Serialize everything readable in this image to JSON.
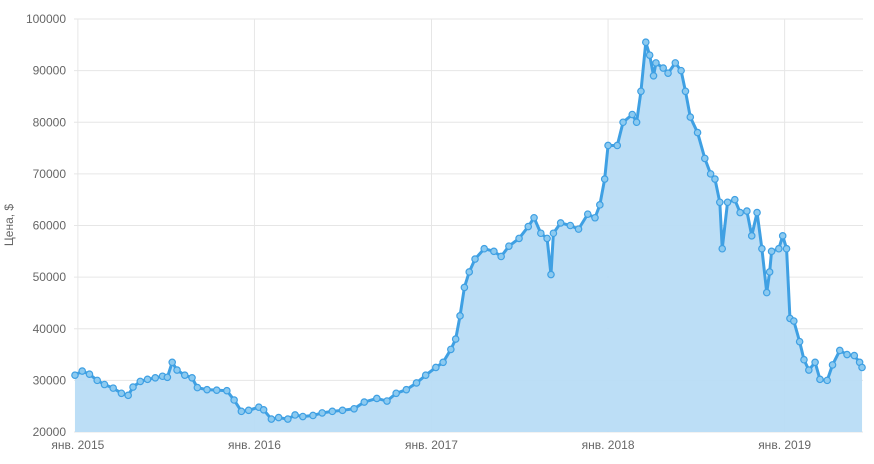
{
  "chart_data": {
    "type": "area",
    "ylabel": "Цена, $",
    "ylim": [
      20000,
      100000
    ],
    "yticks": [
      20000,
      30000,
      40000,
      50000,
      60000,
      70000,
      80000,
      90000,
      100000
    ],
    "xlim": [
      "2014-12-24",
      "2019-06-12"
    ],
    "xticks": [
      {
        "date": "2015-01-01",
        "label": "янв. 2015"
      },
      {
        "date": "2016-01-01",
        "label": "янв. 2016"
      },
      {
        "date": "2017-01-01",
        "label": "янв. 2017"
      },
      {
        "date": "2018-01-01",
        "label": "янв. 2018"
      },
      {
        "date": "2019-01-01",
        "label": "янв. 2019"
      }
    ],
    "grid": true,
    "colors": {
      "line": "#3fa0e3",
      "fill": "#b8dcf5",
      "grid": "#e6e6e6"
    },
    "series": [
      {
        "points": [
          [
            "2014-12-26",
            31000
          ],
          [
            "2015-01-10",
            31800
          ],
          [
            "2015-01-25",
            31200
          ],
          [
            "2015-02-10",
            30000
          ],
          [
            "2015-02-25",
            29200
          ],
          [
            "2015-03-15",
            28500
          ],
          [
            "2015-04-01",
            27500
          ],
          [
            "2015-04-15",
            27100
          ],
          [
            "2015-04-25",
            28700
          ],
          [
            "2015-05-10",
            29800
          ],
          [
            "2015-05-25",
            30200
          ],
          [
            "2015-06-10",
            30500
          ],
          [
            "2015-06-25",
            30800
          ],
          [
            "2015-07-05",
            30600
          ],
          [
            "2015-07-15",
            33500
          ],
          [
            "2015-07-25",
            32000
          ],
          [
            "2015-08-10",
            31000
          ],
          [
            "2015-08-25",
            30500
          ],
          [
            "2015-09-05",
            28600
          ],
          [
            "2015-09-25",
            28200
          ],
          [
            "2015-10-15",
            28100
          ],
          [
            "2015-11-05",
            28000
          ],
          [
            "2015-11-20",
            26200
          ],
          [
            "2015-12-05",
            24000
          ],
          [
            "2015-12-20",
            24200
          ],
          [
            "2016-01-10",
            24800
          ],
          [
            "2016-01-20",
            24300
          ],
          [
            "2016-02-05",
            22500
          ],
          [
            "2016-02-20",
            22800
          ],
          [
            "2016-03-10",
            22500
          ],
          [
            "2016-03-25",
            23300
          ],
          [
            "2016-04-10",
            23000
          ],
          [
            "2016-05-01",
            23200
          ],
          [
            "2016-05-20",
            23700
          ],
          [
            "2016-06-10",
            24000
          ],
          [
            "2016-07-01",
            24200
          ],
          [
            "2016-07-25",
            24500
          ],
          [
            "2016-08-15",
            25800
          ],
          [
            "2016-09-10",
            26500
          ],
          [
            "2016-10-01",
            26000
          ],
          [
            "2016-10-20",
            27500
          ],
          [
            "2016-11-10",
            28200
          ],
          [
            "2016-12-01",
            29500
          ],
          [
            "2016-12-20",
            31000
          ],
          [
            "2017-01-10",
            32500
          ],
          [
            "2017-01-25",
            33500
          ],
          [
            "2017-02-10",
            36000
          ],
          [
            "2017-02-20",
            38000
          ],
          [
            "2017-03-01",
            42500
          ],
          [
            "2017-03-10",
            48000
          ],
          [
            "2017-03-20",
            51000
          ],
          [
            "2017-04-01",
            53500
          ],
          [
            "2017-04-20",
            55500
          ],
          [
            "2017-05-10",
            55000
          ],
          [
            "2017-05-25",
            54000
          ],
          [
            "2017-06-10",
            56000
          ],
          [
            "2017-07-01",
            57500
          ],
          [
            "2017-07-20",
            59800
          ],
          [
            "2017-08-01",
            61500
          ],
          [
            "2017-08-15",
            58500
          ],
          [
            "2017-08-28",
            57500
          ],
          [
            "2017-09-05",
            50500
          ],
          [
            "2017-09-10",
            58500
          ],
          [
            "2017-09-25",
            60500
          ],
          [
            "2017-10-15",
            60000
          ],
          [
            "2017-11-01",
            59300
          ],
          [
            "2017-11-20",
            62200
          ],
          [
            "2017-12-05",
            61500
          ],
          [
            "2017-12-15",
            64000
          ],
          [
            "2017-12-25",
            69000
          ],
          [
            "2018-01-01",
            75500
          ],
          [
            "2018-01-20",
            75500
          ],
          [
            "2018-02-01",
            80000
          ],
          [
            "2018-02-20",
            81500
          ],
          [
            "2018-03-01",
            80000
          ],
          [
            "2018-03-10",
            86000
          ],
          [
            "2018-03-20",
            95500
          ],
          [
            "2018-03-28",
            93000
          ],
          [
            "2018-04-05",
            89000
          ],
          [
            "2018-04-10",
            91500
          ],
          [
            "2018-04-25",
            90500
          ],
          [
            "2018-05-05",
            89500
          ],
          [
            "2018-05-20",
            91500
          ],
          [
            "2018-06-01",
            90000
          ],
          [
            "2018-06-10",
            86000
          ],
          [
            "2018-06-20",
            81000
          ],
          [
            "2018-07-05",
            78000
          ],
          [
            "2018-07-20",
            73000
          ],
          [
            "2018-08-01",
            70000
          ],
          [
            "2018-08-10",
            69000
          ],
          [
            "2018-08-20",
            64500
          ],
          [
            "2018-08-25",
            55500
          ],
          [
            "2018-09-05",
            64500
          ],
          [
            "2018-09-20",
            65000
          ],
          [
            "2018-10-01",
            62500
          ],
          [
            "2018-10-15",
            62800
          ],
          [
            "2018-10-25",
            58000
          ],
          [
            "2018-11-05",
            62500
          ],
          [
            "2018-11-15",
            55500
          ],
          [
            "2018-11-25",
            47000
          ],
          [
            "2018-12-01",
            51000
          ],
          [
            "2018-12-05",
            55000
          ],
          [
            "2018-12-20",
            55500
          ],
          [
            "2018-12-28",
            58000
          ],
          [
            "2019-01-05",
            55500
          ],
          [
            "2019-01-12",
            42000
          ],
          [
            "2019-01-20",
            41500
          ],
          [
            "2019-02-01",
            37500
          ],
          [
            "2019-02-10",
            34000
          ],
          [
            "2019-02-20",
            32000
          ],
          [
            "2019-03-05",
            33500
          ],
          [
            "2019-03-15",
            30200
          ],
          [
            "2019-03-30",
            30000
          ],
          [
            "2019-04-10",
            33000
          ],
          [
            "2019-04-25",
            35800
          ],
          [
            "2019-05-10",
            35000
          ],
          [
            "2019-05-25",
            34800
          ],
          [
            "2019-06-05",
            33500
          ],
          [
            "2019-06-10",
            32500
          ]
        ]
      }
    ]
  }
}
